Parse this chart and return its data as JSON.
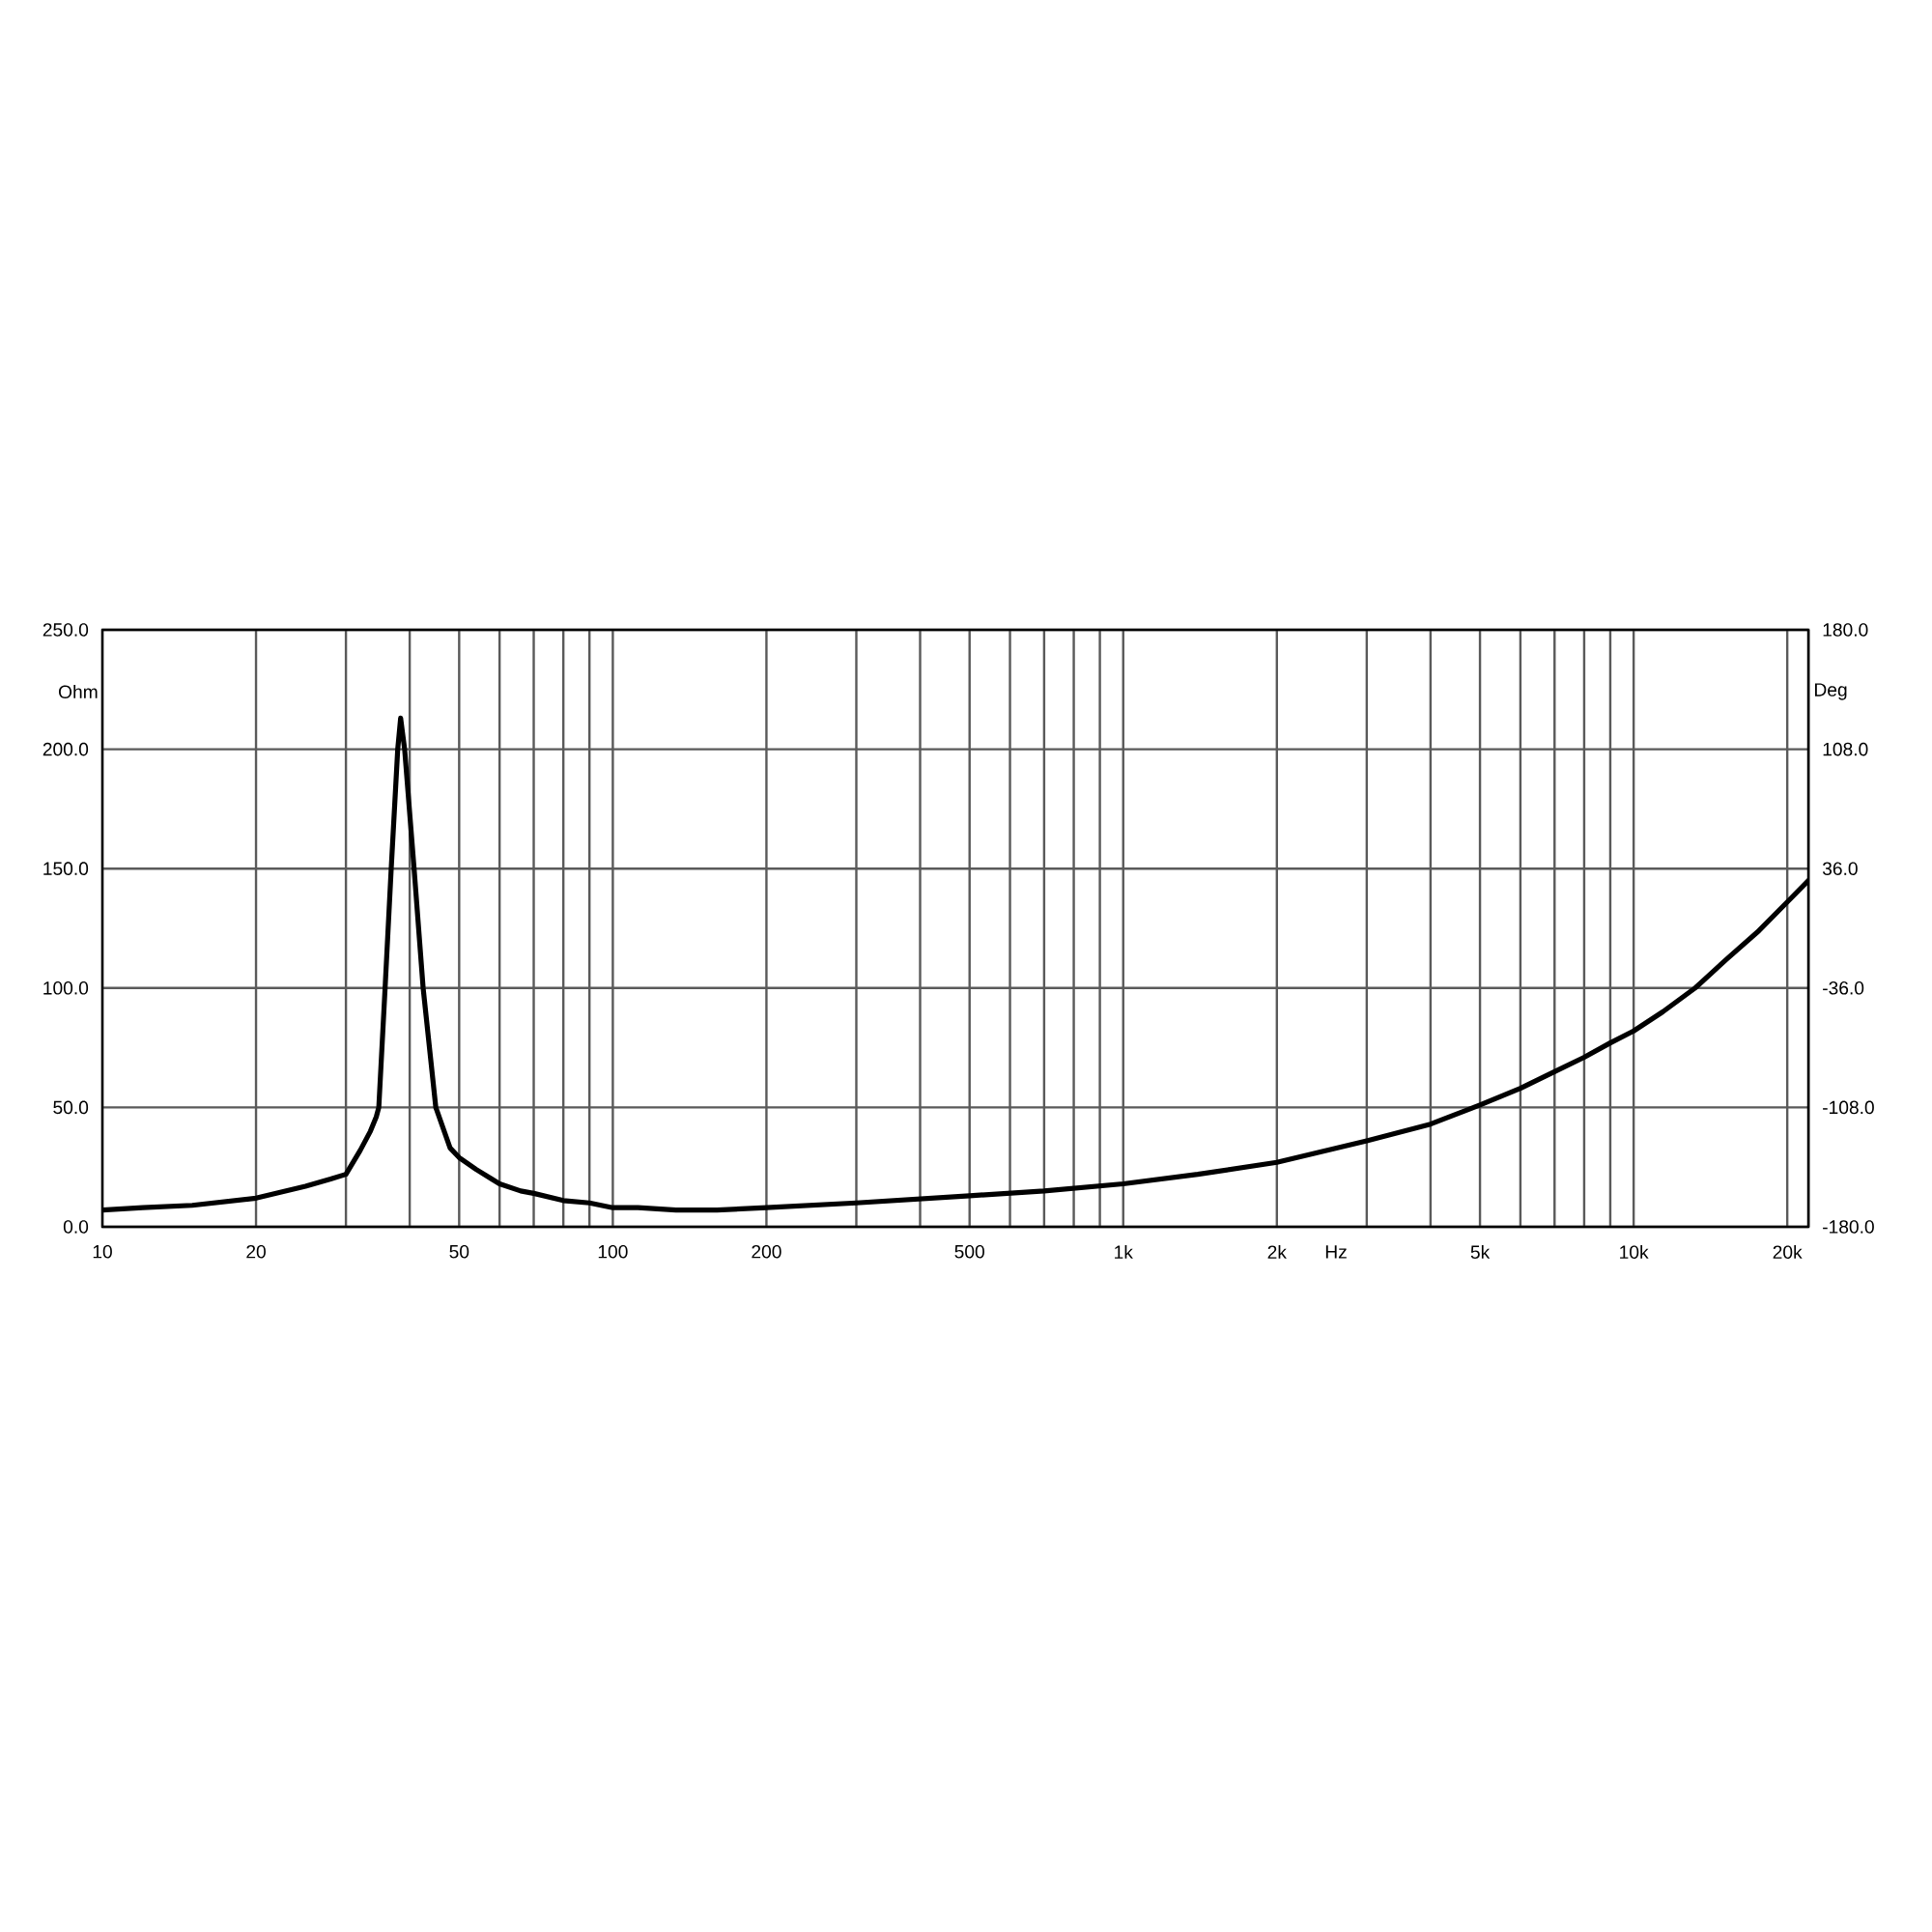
{
  "chart_data": {
    "type": "line",
    "xlabel": "Hz",
    "ylabel": "Ohm",
    "y2label": "Deg",
    "log": "x",
    "grid": true,
    "x": [
      10,
      12,
      15,
      20,
      25,
      28,
      30,
      32,
      33.5,
      34.4,
      34.8,
      35.8,
      36.8,
      37.9,
      38.4,
      39.1,
      40.8,
      42.5,
      45,
      48,
      50,
      54,
      60,
      66,
      70,
      80,
      90,
      100,
      112,
      133,
      160,
      200,
      300,
      500,
      700,
      1000,
      1400,
      2000,
      3000,
      4000,
      5000,
      6000,
      7000,
      8000,
      9000,
      10000,
      11400,
      13200,
      15200,
      17600,
      20000,
      22000
    ],
    "series": [
      {
        "color": "#000000",
        "values": [
          7,
          8,
          9,
          12,
          17,
          20,
          22,
          32,
          40,
          46,
          50,
          100,
          150,
          200,
          213,
          200,
          150,
          100,
          50,
          33,
          29,
          24,
          18,
          15,
          14,
          11,
          10,
          8,
          8,
          7,
          7,
          8,
          10,
          13,
          15,
          18,
          22,
          27,
          36,
          43,
          51,
          58,
          65,
          71,
          77,
          82,
          90,
          100,
          112,
          124,
          136,
          145
        ]
      }
    ],
    "xlim": [
      10,
      22000
    ],
    "xticks": [
      10,
      20,
      {
        "value": 30,
        "label": null
      },
      {
        "value": 40,
        "label": null
      },
      50,
      {
        "value": 60,
        "label": null
      },
      {
        "value": 70,
        "label": null
      },
      {
        "value": 80,
        "label": null
      },
      {
        "value": 90,
        "label": null
      },
      100,
      200,
      {
        "value": 300,
        "label": null
      },
      {
        "value": 400,
        "label": null
      },
      500,
      {
        "value": 600,
        "label": null
      },
      {
        "value": 700,
        "label": null
      },
      {
        "value": 800,
        "label": null
      },
      {
        "value": 900,
        "label": null
      },
      {
        "value": 1000,
        "label": "1k"
      },
      {
        "value": 2000,
        "label": "2k"
      },
      {
        "value": 3000,
        "label": null
      },
      {
        "value": 4000,
        "label": null
      },
      {
        "value": 5000,
        "label": "5k"
      },
      {
        "value": 6000,
        "label": null
      },
      {
        "value": 7000,
        "label": null
      },
      {
        "value": 8000,
        "label": null
      },
      {
        "value": 9000,
        "label": null
      },
      {
        "value": 10000,
        "label": "10k"
      },
      {
        "value": 20000,
        "label": "20k"
      }
    ],
    "ylim": [
      0,
      250
    ],
    "yticks": [
      {
        "value": 0,
        "label": "0.0"
      },
      {
        "value": 50,
        "label": "50.0"
      },
      {
        "value": 100,
        "label": "100.0"
      },
      {
        "value": 150,
        "label": "150.0"
      },
      {
        "value": 200,
        "label": "200.0"
      },
      {
        "value": 250,
        "label": "250.0"
      }
    ],
    "y2lim": [
      -180,
      180
    ],
    "y2ticks": [
      {
        "value": -180,
        "label": "-180.0"
      },
      {
        "value": -108,
        "label": "-108.0"
      },
      {
        "value": -36,
        "label": "-36.0"
      },
      {
        "value": 36,
        "label": "36.0"
      },
      {
        "value": 108,
        "label": "108.0"
      },
      {
        "value": 180,
        "label": "180.0"
      }
    ]
  }
}
